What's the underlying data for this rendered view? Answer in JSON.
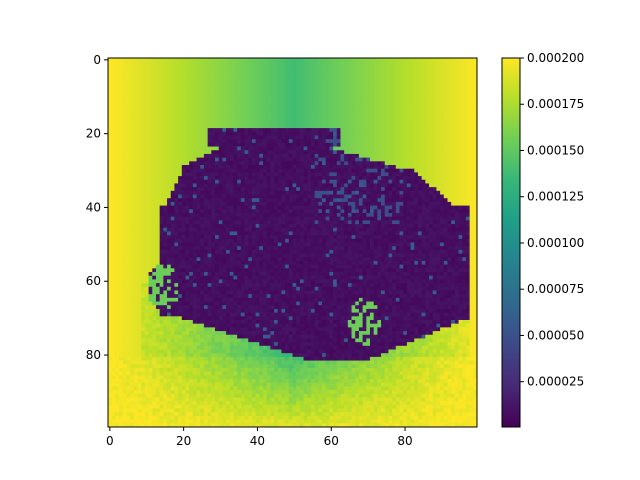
{
  "chart_data": {
    "type": "heatmap",
    "title": "",
    "xlabel": "",
    "ylabel": "",
    "grid": false,
    "colormap": "viridis",
    "image_size": [
      100,
      100
    ],
    "xlim": [
      -0.5,
      99.5
    ],
    "ylim": [
      99.5,
      -0.5
    ],
    "x_ticks": [
      0,
      20,
      40,
      60,
      80
    ],
    "y_ticks": [
      0,
      20,
      40,
      60,
      80
    ],
    "x_tick_labels": [
      "0",
      "20",
      "40",
      "60",
      "80"
    ],
    "y_tick_labels": [
      "0",
      "20",
      "40",
      "60",
      "80"
    ],
    "colorbar": {
      "range": [
        5e-07,
        0.0002
      ],
      "ticks": [
        2.5e-05,
        5e-05,
        7.5e-05,
        0.0001,
        0.000125,
        0.00015,
        0.000175,
        0.0002
      ],
      "tick_labels": [
        "0.000025",
        "0.000050",
        "0.000075",
        "0.000100",
        "0.000125",
        "0.000150",
        "0.000175",
        "0.000200"
      ]
    },
    "description_of_values": {
      "background_corners": 0.0002,
      "background_center_column": 0.00014,
      "car_body": 5e-06,
      "wheels": 0.00015,
      "ground_below_car": 0.00016
    }
  },
  "colors": {
    "viridis_stops": [
      "#440154",
      "#482878",
      "#3e4989",
      "#31688e",
      "#26828e",
      "#1f9e89",
      "#35b779",
      "#6ece58",
      "#b5de2b",
      "#fde725"
    ]
  }
}
